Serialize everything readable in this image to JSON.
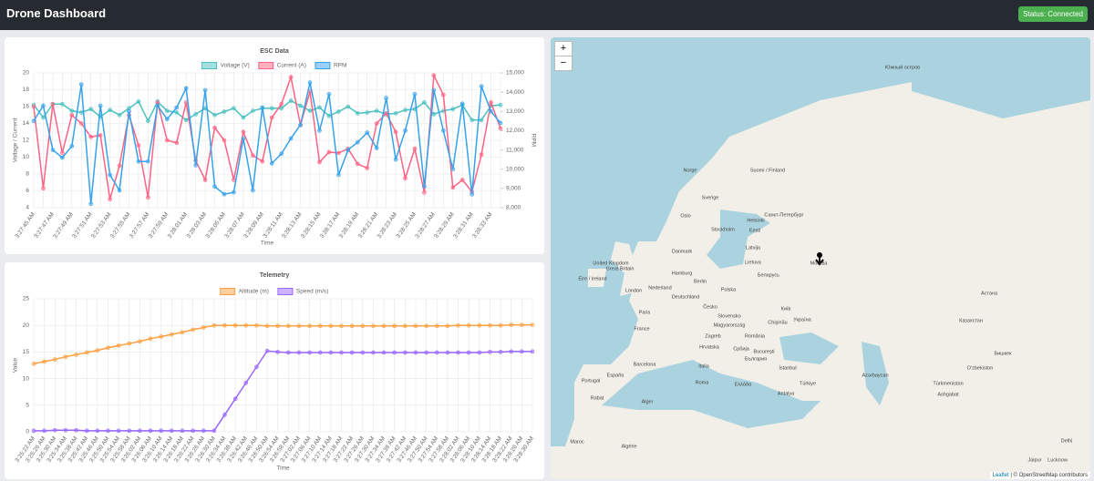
{
  "header": {
    "title": "Drone Dashboard",
    "status": "Status: Connected"
  },
  "chart_data": [
    {
      "type": "line",
      "title": "ESC Data",
      "x_label": "Time",
      "y_label": "Voltage / Current",
      "y2_label": "RPM",
      "grid": true,
      "legend": "top",
      "categories": [
        "3:27:45 AM",
        null,
        "3:27:47 AM",
        null,
        "3:27:49 AM",
        null,
        "3:27:51 AM",
        null,
        "3:27:53 AM",
        null,
        "3:27:55 AM",
        null,
        "3:27:57 AM",
        null,
        "3:27:59 AM",
        null,
        "3:28:01 AM",
        null,
        "3:28:03 AM",
        null,
        "3:28:05 AM",
        null,
        "3:28:07 AM",
        null,
        "3:28:09 AM",
        null,
        "3:28:11 AM",
        null,
        "3:28:13 AM",
        null,
        "3:28:15 AM",
        null,
        "3:28:17 AM",
        null,
        "3:28:19 AM",
        null,
        "3:28:21 AM",
        null,
        "3:28:23 AM",
        null,
        "3:28:25 AM",
        null,
        "3:28:27 AM",
        null,
        "3:28:29 AM",
        null,
        "3:28:31 AM",
        null,
        "3:28:33 AM",
        null
      ],
      "series": [
        {
          "name": "Voltage (V)",
          "color": "#4bc0c0",
          "values": [
            16.2,
            14.7,
            16.3,
            16.3,
            15.5,
            15.3,
            15.7,
            14.8,
            15.6,
            15,
            15.8,
            16.6,
            14.3,
            16.6,
            15.5,
            15.3,
            14.4,
            15.1,
            15.8,
            15,
            15.4,
            15.8,
            14.7,
            15.5,
            15.8,
            15.8,
            15.8,
            16.7,
            16.1,
            15.5,
            15.9,
            14.9,
            15.4,
            16,
            15.2,
            15.3,
            15.5,
            15.1,
            15.2,
            15.6,
            15.7,
            16.5,
            15.1,
            15.5,
            15.7,
            16.2,
            14.4,
            14.4,
            16.1,
            16.2
          ]
        },
        {
          "name": "Current (A)",
          "color": "#ff6384",
          "values": [
            16,
            6.3,
            16.3,
            10.5,
            15,
            14,
            12.4,
            12.6,
            5,
            9,
            15,
            11.4,
            5.2,
            16.5,
            12,
            11.7,
            16.5,
            9.6,
            7.3,
            13.5,
            12,
            7.3,
            13,
            10.2,
            9.5,
            14.7,
            16.3,
            19.5,
            13.8,
            17.8,
            9.4,
            10.6,
            10.5,
            11,
            9.2,
            8.7,
            14,
            15.2,
            13,
            7.5,
            11,
            5.8,
            19.7,
            17.4,
            6.4,
            7.3,
            5.9,
            10.3,
            16.5,
            13.4
          ]
        },
        {
          "name": "RPM",
          "color": "#36a2eb",
          "axis": "y2",
          "values": [
            12500,
            13300,
            11000,
            10600,
            11200,
            14400,
            8200,
            13300,
            9700,
            8900,
            13000,
            10400,
            10400,
            13300,
            12600,
            13200,
            14200,
            10200,
            14100,
            9100,
            8700,
            8800,
            11600,
            8900,
            13200,
            10300,
            10800,
            11600,
            12300,
            14500,
            12000,
            13900,
            9700,
            11000,
            11400,
            11900,
            11100,
            13700,
            10500,
            12000,
            13900,
            9100,
            14100,
            12000,
            10000,
            13400,
            8700,
            14300,
            13000,
            12400
          ]
        }
      ],
      "ylim": [
        4,
        20
      ],
      "yticks": [
        4,
        6,
        8,
        10,
        12,
        14,
        16,
        18,
        20
      ],
      "y2lim": [
        8000,
        15000
      ],
      "y2ticks": [
        {
          "value": 8000,
          "label": "8,000"
        },
        {
          "value": 9000,
          "label": "9,000"
        },
        {
          "value": 10000,
          "label": "10,000"
        },
        {
          "value": 11000,
          "label": "11,000"
        },
        {
          "value": 12000,
          "label": "12,000"
        },
        {
          "value": 13000,
          "label": "13,000"
        },
        {
          "value": 14000,
          "label": "14,000"
        },
        {
          "value": 15000,
          "label": "15,000"
        }
      ]
    },
    {
      "type": "line",
      "title": "Telemetry",
      "x_label": "Time",
      "y_label": "Value",
      "grid": true,
      "legend": "top",
      "categories": [
        "3:25:22 AM",
        "3:25:26 AM",
        "3:25:30 AM",
        "3:25:34 AM",
        "3:25:38 AM",
        "3:25:42 AM",
        "3:25:46 AM",
        "3:25:50 AM",
        "3:25:54 AM",
        "3:25:58 AM",
        "3:26:02 AM",
        "3:26:06 AM",
        "3:26:10 AM",
        "3:26:14 AM",
        "3:26:18 AM",
        "3:26:22 AM",
        "3:26:26 AM",
        "3:26:30 AM",
        "3:26:34 AM",
        "3:26:38 AM",
        "3:26:42 AM",
        "3:26:46 AM",
        "3:26:50 AM",
        "3:26:54 AM",
        "3:26:58 AM",
        "3:27:02 AM",
        "3:27:06 AM",
        "3:27:10 AM",
        "3:27:14 AM",
        "3:27:18 AM",
        "3:27:22 AM",
        "3:27:26 AM",
        "3:27:30 AM",
        "3:27:34 AM",
        "3:27:38 AM",
        "3:27:42 AM",
        "3:27:46 AM",
        "3:27:50 AM",
        "3:27:54 AM",
        "3:27:58 AM",
        "3:28:02 AM",
        "3:28:06 AM",
        "3:28:10 AM",
        "3:28:14 AM",
        "3:28:18 AM",
        "3:28:22 AM",
        "3:28:26 AM",
        "3:28:30 AM"
      ],
      "series": [
        {
          "name": "Altitude (m)",
          "color": "#ff9f40",
          "values": [
            12.8,
            13.2,
            13.6,
            14.1,
            14.5,
            14.9,
            15.3,
            15.8,
            16.2,
            16.6,
            17.0,
            17.5,
            17.9,
            18.3,
            18.7,
            19.2,
            19.6,
            20.0,
            20,
            20,
            20,
            20,
            19.9,
            19.9,
            19.9,
            19.9,
            19.9,
            19.9,
            19.9,
            19.9,
            19.9,
            19.9,
            19.9,
            19.9,
            19.9,
            19.9,
            19.9,
            19.9,
            19.9,
            19.9,
            20,
            20,
            20,
            20,
            20,
            20.1,
            20.1,
            20.1
          ]
        },
        {
          "name": "Speed (m/s)",
          "color": "#9966ff",
          "values": [
            0.2,
            0.2,
            0.3,
            0.3,
            0.3,
            0.2,
            0.2,
            0.2,
            0.2,
            0.2,
            0.2,
            0.2,
            0.2,
            0.2,
            0.2,
            0.2,
            0.2,
            0.2,
            3.2,
            6.2,
            9.2,
            12.2,
            15.2,
            15.0,
            14.9,
            14.9,
            14.9,
            14.9,
            14.9,
            14.9,
            14.9,
            14.9,
            14.9,
            14.9,
            14.9,
            14.9,
            14.9,
            14.9,
            14.9,
            14.9,
            14.9,
            14.9,
            14.9,
            15.0,
            15.0,
            15.1,
            15.1,
            15.1
          ]
        }
      ],
      "ylim": [
        0,
        25
      ],
      "yticks": [
        0,
        5,
        10,
        15,
        20,
        25
      ]
    }
  ],
  "map": {
    "zoom_in": "+",
    "zoom_out": "−",
    "labels": [
      "Южный остров",
      "Norge",
      "Suomi / Finland",
      "Sverige",
      "Oslo",
      "Helsinki",
      "Санкт-Петербург",
      "Stockholm",
      "Eesti",
      "Latvija",
      "Danmark",
      "Lietuva",
      "Москва",
      "United Kingdom",
      "Great Britain",
      "Éire / Ireland",
      "Hamburg",
      "Беларусь",
      "Berlin",
      "Polska",
      "London",
      "Nederland",
      "Deutschland",
      "Česko",
      "Київ",
      "Paris",
      "Slovensko",
      "Україна",
      "Chişinău",
      "Magyarország",
      "France",
      "Zagreb",
      "România",
      "Hrvatska",
      "Србија",
      "București",
      "България",
      "Barcelona",
      "Italia",
      "İstanbul",
      "España",
      "Portugal",
      "Roma",
      "Türkiye",
      "Ελλάδα",
      "Antalya",
      "Rabat",
      "Alger",
      "Maroc",
      "Algérie",
      "Казахстан",
      "Астана",
      "Azərbaycan",
      "Türkmenistan",
      "Ashgabat",
      "Oʻzbekiston",
      "Бишкек",
      "Delhi",
      "Jaipur",
      "Lucknow"
    ],
    "attribution": [
      "Leaflet",
      "| © OpenStreetMap contributors"
    ]
  }
}
